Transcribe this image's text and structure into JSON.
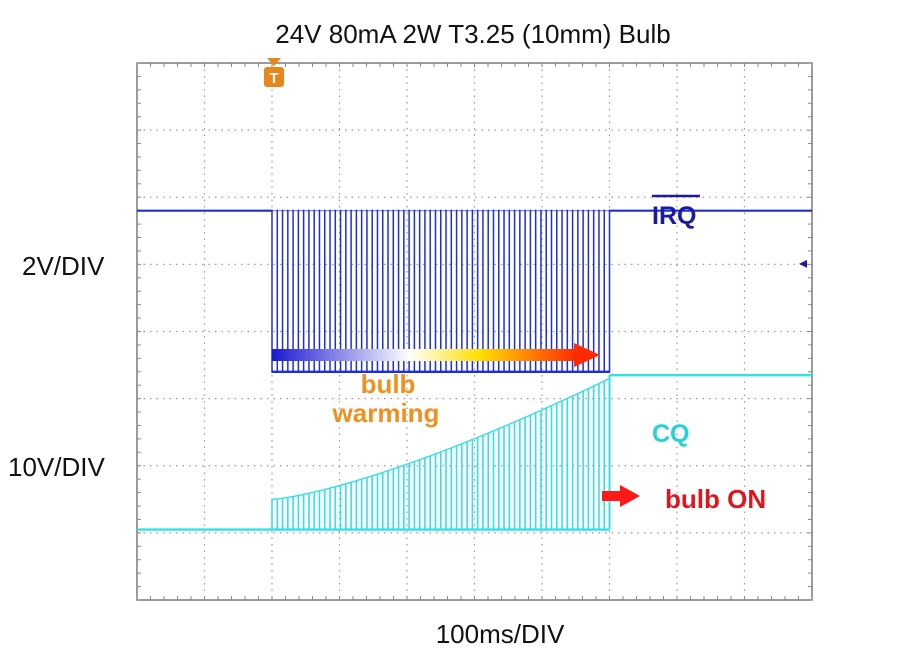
{
  "chart_data": {
    "type": "line",
    "title": "24V 80mA 2W T3.25 (10mm) Bulb",
    "xlabel": "100ms/DIV",
    "ylabels": [
      "2V/DIV",
      "10V/DIV"
    ],
    "grid": true,
    "trigger_marker": "T",
    "x_unit": "ms",
    "xlim": [
      0,
      1000
    ],
    "timing": {
      "pulse_start_ms": 200,
      "pulse_end_ms": 700
    },
    "series": [
      {
        "name": "IRQ",
        "name_overline": true,
        "color": "#1f2fd6",
        "label_color": "#1a1aa6",
        "scale": "2V/DIV",
        "high_div": 5.8,
        "low_div": 3.4,
        "pulse_count": 64,
        "behavior": "high, then square pulses between 200 ms and 700 ms, then high"
      },
      {
        "name": "CQ",
        "color": "#33e0e6",
        "label_color": "#22d3d8",
        "scale": "10V/DIV",
        "baseline_div": 1.05,
        "start_div": 1.5,
        "end_div": 3.3,
        "final_div": 3.35,
        "pulse_count": 64,
        "behavior": "low, pulses from 200 ms rising from 1.5 to 3.3 div until 700 ms, then steady high"
      }
    ],
    "annotations": {
      "warming": {
        "line1": "bulb",
        "line2": "warming",
        "color": "#f0901e",
        "arrow_gradient": [
          "#1a1ad0",
          "#ffffff",
          "#ffe000",
          "#ff2a00"
        ]
      },
      "on": {
        "text": "bulb ON",
        "color": "#e0161e",
        "arrow_color": "#ff1a1a"
      }
    },
    "trigger_color": "#e8861a",
    "ground_markers": {
      "irq": "◂"
    }
  }
}
